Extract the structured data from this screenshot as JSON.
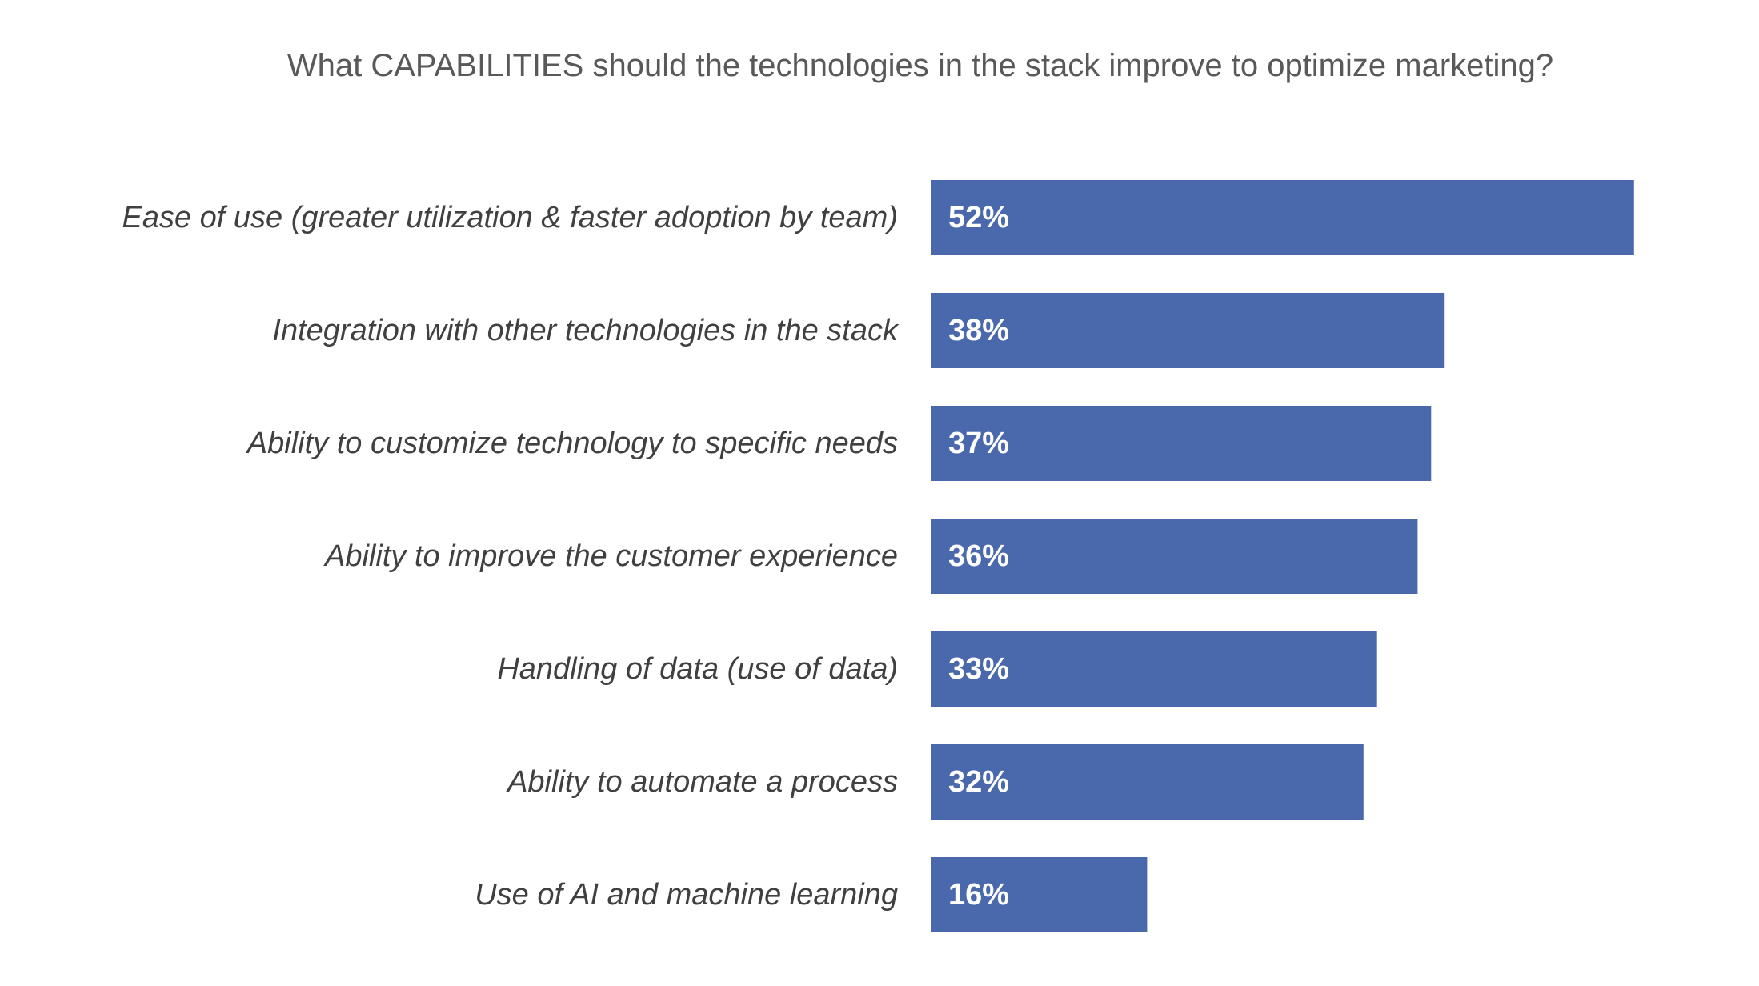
{
  "chart_data": {
    "type": "bar",
    "orientation": "horizontal",
    "title": "What CAPABILITIES should the technologies in the stack improve to optimize marketing?",
    "categories": [
      "Ease of use (greater utilization & faster adoption by team)",
      "Integration with other technologies in the stack",
      "Ability to customize technology to specific needs",
      "Ability to improve the customer experience",
      "Handling of data (use of data)",
      "Ability to automate a process",
      "Use of AI and machine learning"
    ],
    "values": [
      52,
      38,
      37,
      36,
      33,
      32,
      16
    ],
    "value_labels": [
      "52%",
      "38%",
      "37%",
      "36%",
      "33%",
      "32%",
      "16%"
    ],
    "unit": "%",
    "bar_color": "#4A69AC",
    "grid": false,
    "legend": "none"
  }
}
